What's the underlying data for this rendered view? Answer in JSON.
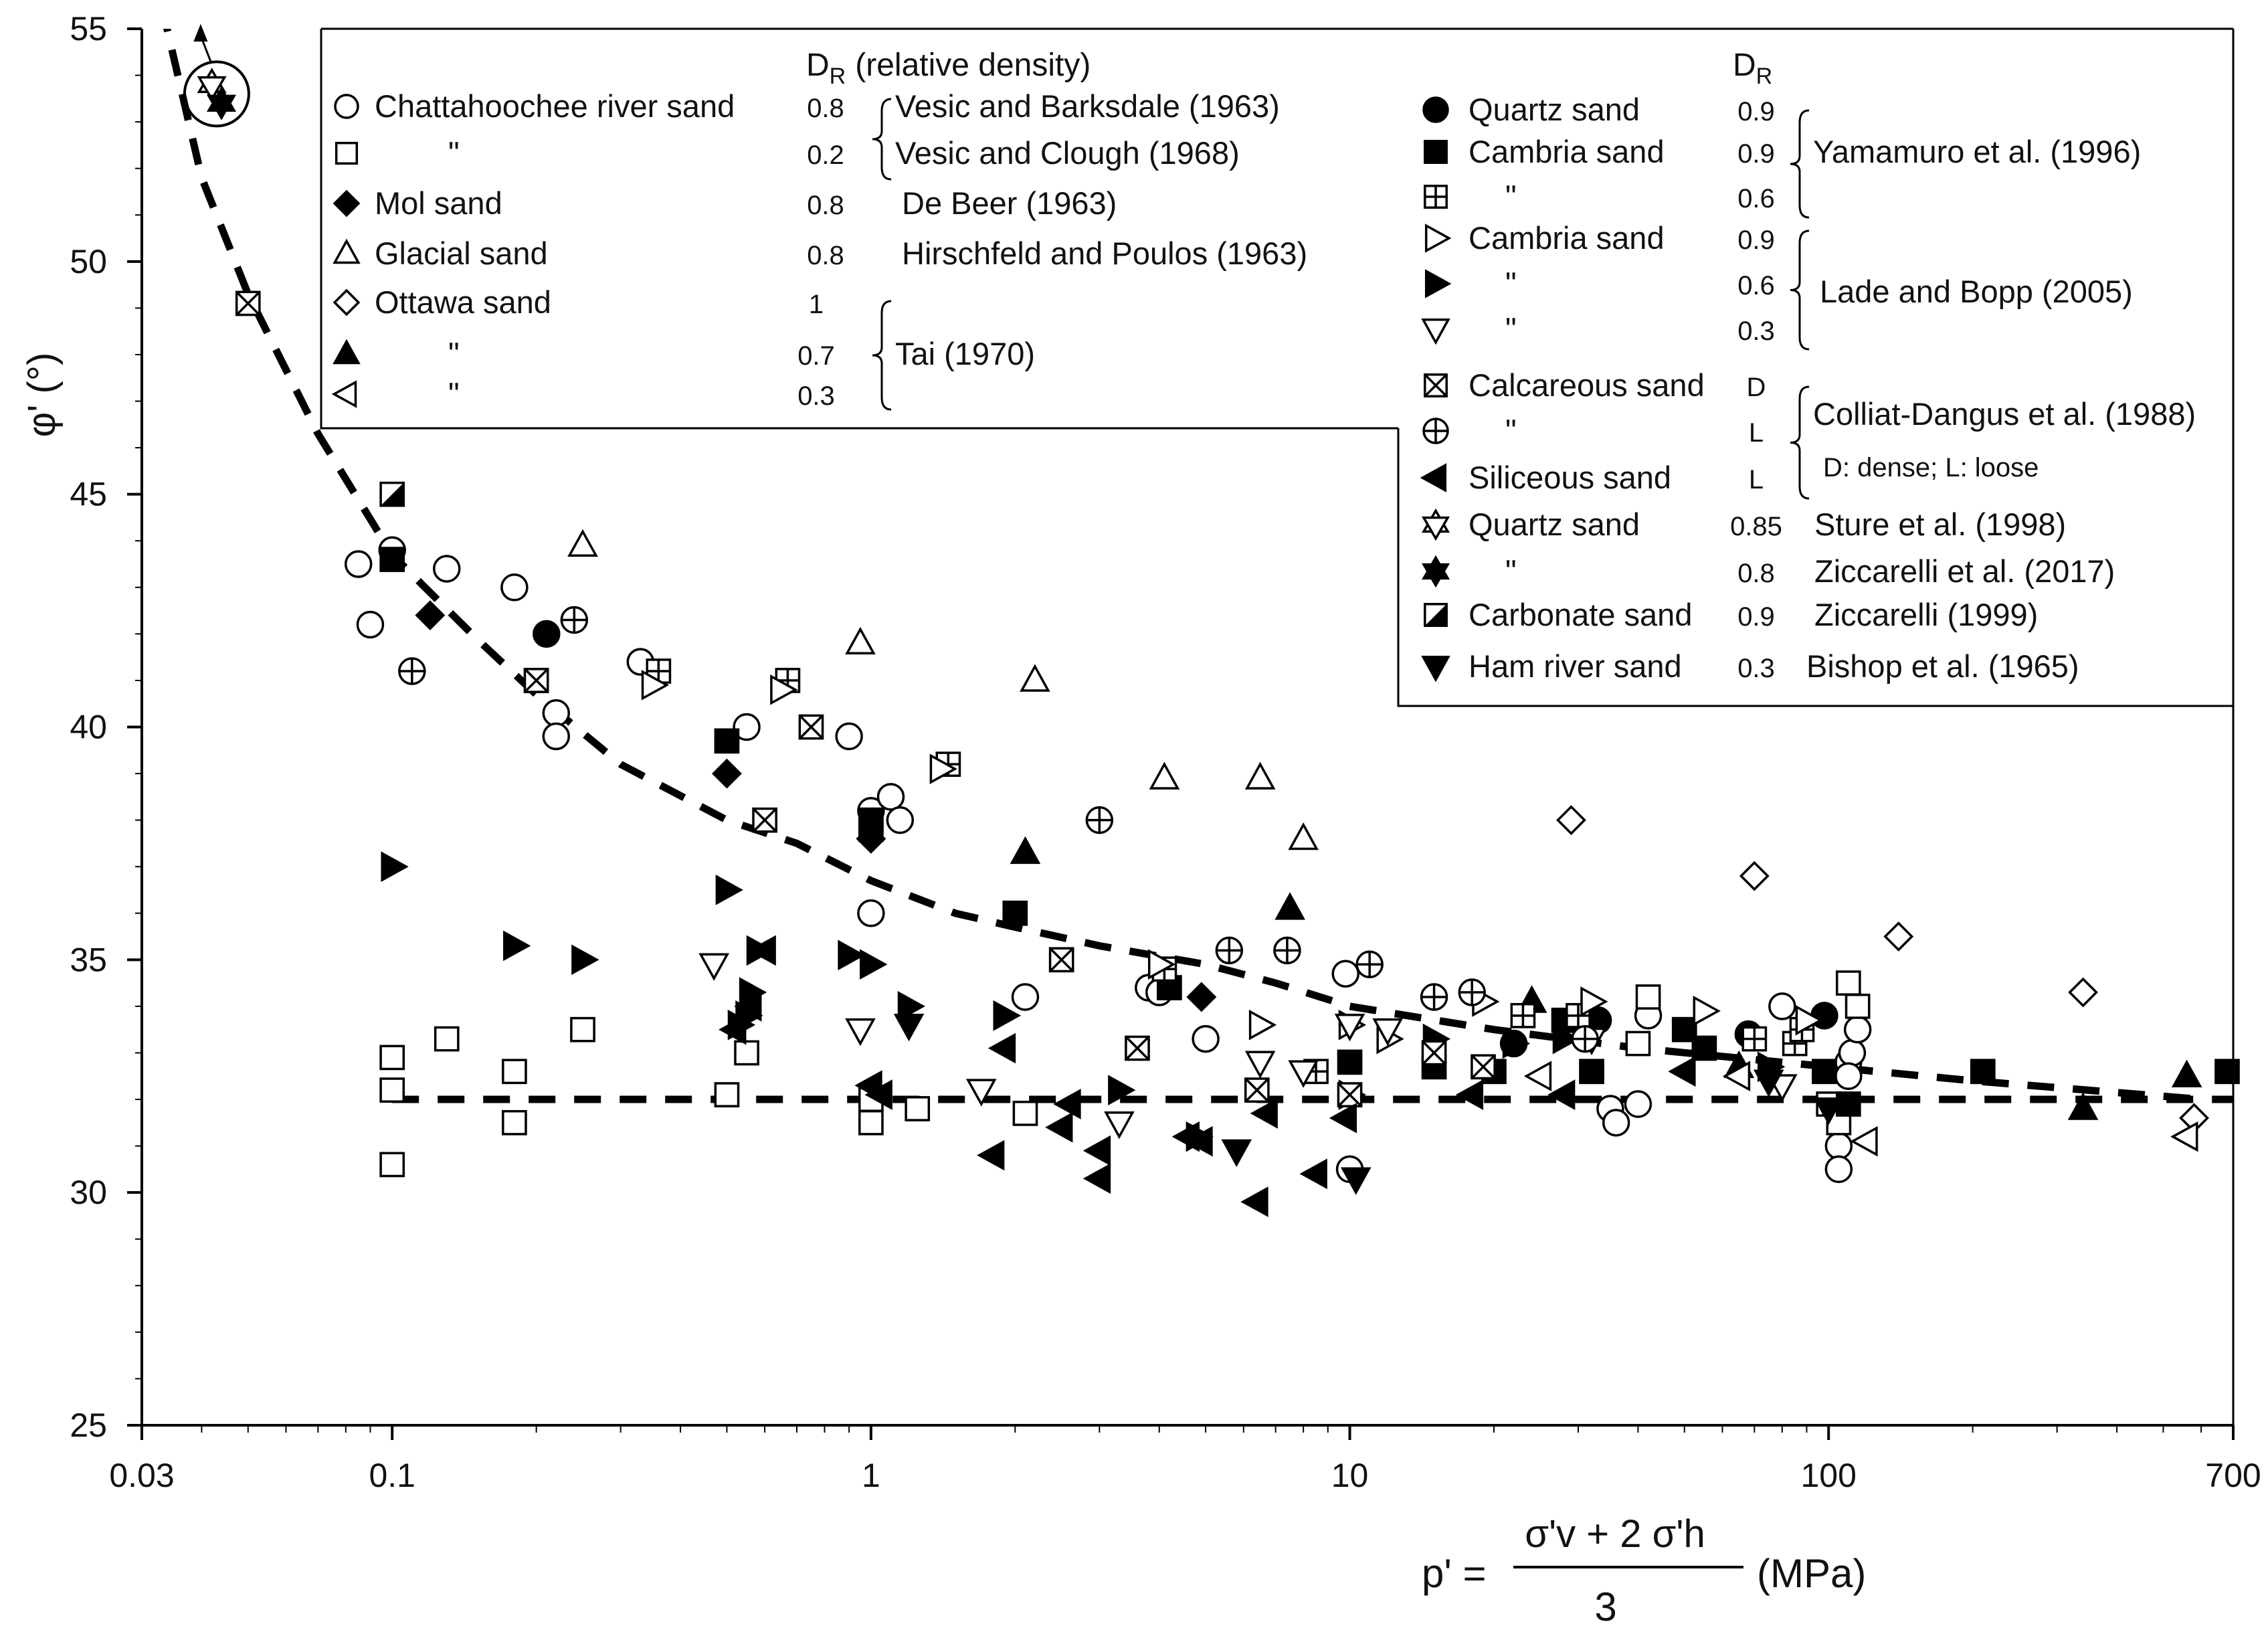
{
  "chart_data": {
    "type": "scatter",
    "xscale": "log",
    "xlim": [
      0.03,
      700
    ],
    "ylim": [
      25,
      55
    ],
    "yticks": [
      25,
      30,
      35,
      40,
      45,
      50,
      55
    ],
    "xticks": [
      {
        "v": 0.03,
        "label": "0.03"
      },
      {
        "v": 0.1,
        "label": "0.1"
      },
      {
        "v": 1,
        "label": "1"
      },
      {
        "v": 10,
        "label": "10"
      },
      {
        "v": 100,
        "label": "100"
      },
      {
        "v": 700,
        "label": "700"
      }
    ],
    "ylabel": "φ' (°)",
    "xlabel": {
      "lhs": "p' =",
      "numerator": "σ'v + 2 σ'h",
      "denominator": "3",
      "unit": "(MPa)"
    },
    "trend_curve": [
      [
        0.033,
        55.5
      ],
      [
        0.04,
        51.8
      ],
      [
        0.05,
        49.3
      ],
      [
        0.07,
        46.3
      ],
      [
        0.1,
        43.7
      ],
      [
        0.15,
        41.9
      ],
      [
        0.2,
        40.7
      ],
      [
        0.3,
        39.2
      ],
      [
        0.5,
        38.0
      ],
      [
        0.7,
        37.5
      ],
      [
        1,
        36.7
      ],
      [
        1.5,
        36.0
      ],
      [
        2,
        35.7
      ],
      [
        3,
        35.3
      ],
      [
        5,
        34.9
      ],
      [
        7,
        34.5
      ],
      [
        10,
        34.0
      ],
      [
        20,
        33.5
      ],
      [
        40,
        33.1
      ],
      [
        100,
        32.7
      ],
      [
        200,
        32.4
      ],
      [
        600,
        32.0
      ]
    ],
    "baseline_curve": [
      [
        0.1,
        32
      ],
      [
        700,
        32
      ]
    ],
    "legend_left": {
      "header": "DR (relative density)",
      "rows": [
        {
          "marker": "circle",
          "label": "Chattahoochee river sand",
          "dr": "0.8",
          "ref": "Vesic and Barksdale (1963)"
        },
        {
          "marker": "square",
          "label": "\"",
          "dr": "0.2",
          "ref": "Vesic and Clough      (1968)"
        },
        {
          "marker": "diamond-filled",
          "label": "Mol sand",
          "dr": "0.8",
          "ref": "De Beer (1963)"
        },
        {
          "marker": "triangle-up",
          "label": "Glacial sand",
          "dr": "0.8",
          "ref": "Hirschfeld and Poulos (1963)"
        },
        {
          "marker": "diamond",
          "label": "Ottawa sand",
          "dr": "1",
          "ref": ""
        },
        {
          "marker": "triangle-up-filled",
          "label": "\"",
          "dr": "0.7",
          "ref": "Tai (1970)"
        },
        {
          "marker": "triangle-left",
          "label": "\"",
          "dr": "0.3",
          "ref": ""
        }
      ]
    },
    "legend_right": {
      "header": "DR",
      "rows": [
        {
          "marker": "circle-filled",
          "label": "Quartz sand",
          "dr": "0.9",
          "ref": ""
        },
        {
          "marker": "square-filled",
          "label": "Cambria sand",
          "dr": "0.9",
          "ref": "Yamamuro et al. (1996)"
        },
        {
          "marker": "square-plus",
          "label": "\"",
          "dr": "0.6",
          "ref": ""
        },
        {
          "marker": "triangle-right",
          "label": "Cambria sand",
          "dr": "0.9",
          "ref": ""
        },
        {
          "marker": "triangle-right-filled",
          "label": "\"",
          "dr": "0.6",
          "ref": "Lade and Bopp (2005)"
        },
        {
          "marker": "triangle-down",
          "label": "\"",
          "dr": "0.3",
          "ref": ""
        },
        {
          "marker": "square-x",
          "label": "Calcareous sand",
          "dr": "D",
          "ref": ""
        },
        {
          "marker": "circle-plus",
          "label": "\"",
          "dr": "L",
          "ref": "Colliat-Dangus et al. (1988)"
        },
        {
          "marker": "triangle-left-filled",
          "label": "Siliceous sand",
          "dr": "L",
          "ref": "D: dense; L: loose"
        },
        {
          "marker": "star6",
          "label": "Quartz sand",
          "dr": "0.85",
          "ref": "Sture et al. (1998)"
        },
        {
          "marker": "star6-filled",
          "label": "\"",
          "dr": "0.8",
          "ref": "Ziccarelli et al. (2017)"
        },
        {
          "marker": "square-half",
          "label": "Carbonate sand",
          "dr": "0.9",
          "ref": "Ziccarelli (1999)"
        },
        {
          "marker": "triangle-down-filled",
          "label": "Ham river sand",
          "dr": "0.3",
          "ref": "Bishop et al. (1965)"
        }
      ]
    },
    "series": [
      {
        "marker": "circle",
        "points": [
          [
            0.085,
            43.5
          ],
          [
            0.09,
            42.2
          ],
          [
            0.1,
            43.8
          ],
          [
            0.13,
            43.4
          ],
          [
            0.18,
            43.0
          ],
          [
            0.22,
            40.3
          ],
          [
            0.22,
            39.8
          ],
          [
            0.33,
            41.4
          ],
          [
            0.55,
            40.0
          ],
          [
            0.9,
            39.8
          ],
          [
            1.0,
            38.2
          ],
          [
            1.1,
            38.5
          ],
          [
            1.15,
            38.0
          ],
          [
            1.0,
            36.0
          ],
          [
            2.1,
            34.2
          ],
          [
            3.8,
            34.4
          ],
          [
            4.0,
            34.3
          ],
          [
            5.0,
            33.3
          ],
          [
            9.8,
            34.7
          ],
          [
            10.0,
            30.5
          ],
          [
            35,
            31.8
          ],
          [
            36,
            31.5
          ],
          [
            40,
            31.9
          ],
          [
            42,
            33.8
          ],
          [
            80,
            34.0
          ],
          [
            105,
            31.0
          ],
          [
            105,
            30.5
          ],
          [
            110,
            32.8
          ],
          [
            112,
            33.0
          ],
          [
            115,
            33.5
          ],
          [
            110,
            32.5
          ]
        ]
      },
      {
        "marker": "square",
        "points": [
          [
            0.1,
            32.9
          ],
          [
            0.1,
            32.2
          ],
          [
            0.1,
            30.6
          ],
          [
            0.13,
            33.3
          ],
          [
            0.18,
            32.6
          ],
          [
            0.18,
            31.5
          ],
          [
            0.25,
            33.5
          ],
          [
            0.5,
            32.1
          ],
          [
            0.55,
            33.0
          ],
          [
            1.0,
            32.0
          ],
          [
            1.0,
            31.5
          ],
          [
            1.25,
            31.8
          ],
          [
            2.1,
            31.7
          ],
          [
            40,
            33.2
          ],
          [
            42,
            34.2
          ],
          [
            100,
            31.9
          ],
          [
            105,
            31.5
          ],
          [
            110,
            34.5
          ],
          [
            115,
            34.0
          ]
        ]
      },
      {
        "marker": "diamond-filled",
        "points": [
          [
            0.12,
            42.4
          ],
          [
            0.5,
            39.0
          ],
          [
            1.0,
            37.6
          ],
          [
            4.9,
            34.2
          ]
        ]
      },
      {
        "marker": "triangle-up",
        "points": [
          [
            0.25,
            43.9
          ],
          [
            0.95,
            41.8
          ],
          [
            2.2,
            41.0
          ],
          [
            4.1,
            38.9
          ],
          [
            6.5,
            38.9
          ],
          [
            8.0,
            37.6
          ]
        ]
      },
      {
        "marker": "diamond",
        "points": [
          [
            29,
            38.0
          ],
          [
            70,
            36.8
          ],
          [
            140,
            35.5
          ],
          [
            340,
            34.3
          ],
          [
            580,
            31.6
          ]
        ]
      },
      {
        "marker": "triangle-up-filled",
        "points": [
          [
            2.1,
            37.3
          ],
          [
            7.5,
            36.1
          ],
          [
            24,
            34.1
          ],
          [
            65,
            32.7
          ],
          [
            340,
            31.8
          ],
          [
            560,
            32.5
          ]
        ]
      },
      {
        "marker": "triangle-left",
        "points": [
          [
            25,
            32.5
          ],
          [
            65,
            32.5
          ],
          [
            120,
            31.1
          ],
          [
            560,
            31.2
          ]
        ]
      },
      {
        "marker": "circle-filled",
        "points": [
          [
            0.21,
            42.0
          ],
          [
            22,
            33.2
          ],
          [
            33,
            33.7
          ],
          [
            68,
            33.4
          ],
          [
            98,
            33.8
          ]
        ]
      },
      {
        "marker": "square-filled",
        "points": [
          [
            0.1,
            43.6
          ],
          [
            0.2,
            41.0
          ],
          [
            0.5,
            39.7
          ],
          [
            1.0,
            38.0
          ],
          [
            1.0,
            37.8
          ],
          [
            2.0,
            36.0
          ],
          [
            4.2,
            34.4
          ],
          [
            10,
            32.8
          ],
          [
            15,
            32.7
          ],
          [
            20,
            32.6
          ],
          [
            28,
            33.7
          ],
          [
            32,
            32.6
          ],
          [
            50,
            33.5
          ],
          [
            55,
            33.1
          ],
          [
            98,
            32.6
          ],
          [
            110,
            31.9
          ],
          [
            210,
            32.6
          ],
          [
            680,
            32.6
          ]
        ]
      },
      {
        "marker": "square-plus",
        "points": [
          [
            0.36,
            41.2
          ],
          [
            0.67,
            41.0
          ],
          [
            1.45,
            39.2
          ],
          [
            4.1,
            34.8
          ],
          [
            8.5,
            32.6
          ],
          [
            23,
            33.8
          ],
          [
            30,
            33.8
          ],
          [
            70,
            33.3
          ],
          [
            85,
            33.2
          ],
          [
            88,
            33.5
          ]
        ]
      },
      {
        "marker": "triangle-right",
        "points": [
          [
            0.35,
            40.9
          ],
          [
            0.65,
            40.8
          ],
          [
            1.4,
            39.1
          ],
          [
            4.0,
            34.9
          ],
          [
            6.5,
            33.6
          ],
          [
            10,
            33.6
          ],
          [
            12,
            33.3
          ],
          [
            19,
            34.1
          ],
          [
            32,
            34.1
          ],
          [
            55,
            33.9
          ],
          [
            90,
            33.7
          ]
        ]
      },
      {
        "marker": "triangle-right-filled",
        "points": [
          [
            0.1,
            37.0
          ],
          [
            0.18,
            35.3
          ],
          [
            0.25,
            35.0
          ],
          [
            0.5,
            36.5
          ],
          [
            0.58,
            35.2
          ],
          [
            0.56,
            34.3
          ],
          [
            0.55,
            33.8
          ],
          [
            0.53,
            33.6
          ],
          [
            0.9,
            35.1
          ],
          [
            1.0,
            34.9
          ],
          [
            1.2,
            34.0
          ],
          [
            1.9,
            33.8
          ],
          [
            1.9,
            33.8
          ],
          [
            3.3,
            32.2
          ],
          [
            4.8,
            31.2
          ],
          [
            10,
            32.1
          ],
          [
            15,
            33.3
          ],
          [
            22,
            33.2
          ],
          [
            28,
            33.3
          ],
          [
            75,
            32.7
          ]
        ]
      },
      {
        "marker": "triangle-down",
        "points": [
          [
            0.47,
            34.9
          ],
          [
            0.95,
            33.5
          ],
          [
            1.7,
            32.2
          ],
          [
            3.3,
            31.5
          ],
          [
            6.5,
            32.8
          ],
          [
            8,
            32.6
          ],
          [
            10,
            33.6
          ],
          [
            12,
            33.5
          ],
          [
            32,
            33.3
          ],
          [
            80,
            32.3
          ]
        ]
      },
      {
        "marker": "square-x",
        "points": [
          [
            0.05,
            49.1
          ],
          [
            0.2,
            41.0
          ],
          [
            0.6,
            38.0
          ],
          [
            0.75,
            40.0
          ],
          [
            2.5,
            35.0
          ],
          [
            3.6,
            33.1
          ],
          [
            6.4,
            32.2
          ],
          [
            10,
            32.1
          ],
          [
            15,
            33.0
          ],
          [
            19,
            32.7
          ]
        ]
      },
      {
        "marker": "circle-plus",
        "points": [
          [
            0.11,
            41.2
          ],
          [
            0.24,
            42.3
          ],
          [
            3.0,
            38.0
          ],
          [
            5.6,
            35.2
          ],
          [
            7.4,
            35.2
          ],
          [
            11,
            34.9
          ],
          [
            15,
            34.2
          ],
          [
            18,
            34.3
          ],
          [
            31,
            33.3
          ]
        ]
      },
      {
        "marker": "triangle-left-filled",
        "points": [
          [
            0.6,
            35.2
          ],
          [
            0.56,
            34.0
          ],
          [
            0.52,
            33.5
          ],
          [
            1.0,
            32.3
          ],
          [
            1.05,
            32.1
          ],
          [
            1.8,
            30.8
          ],
          [
            1.9,
            33.1
          ],
          [
            2.6,
            31.9
          ],
          [
            2.5,
            31.4
          ],
          [
            3.0,
            30.9
          ],
          [
            3.0,
            30.3
          ],
          [
            4.6,
            31.2
          ],
          [
            4.9,
            31.1
          ],
          [
            6.4,
            29.8
          ],
          [
            6.7,
            31.7
          ],
          [
            8.5,
            30.4
          ],
          [
            9.8,
            31.6
          ],
          [
            18,
            32.1
          ],
          [
            28,
            32.1
          ],
          [
            50,
            32.6
          ]
        ]
      },
      {
        "marker": "star6",
        "points": [
          [
            0.042,
            53.8
          ]
        ]
      },
      {
        "marker": "star6-filled",
        "points": [
          [
            0.044,
            53.4
          ]
        ]
      },
      {
        "marker": "square-half",
        "points": [
          [
            0.1,
            45.0
          ]
        ]
      },
      {
        "marker": "triangle-down-filled",
        "points": [
          [
            1.2,
            33.6
          ],
          [
            5.8,
            30.9
          ],
          [
            10.3,
            30.3
          ],
          [
            75,
            32.4
          ],
          [
            100,
            31.8
          ]
        ]
      }
    ]
  }
}
